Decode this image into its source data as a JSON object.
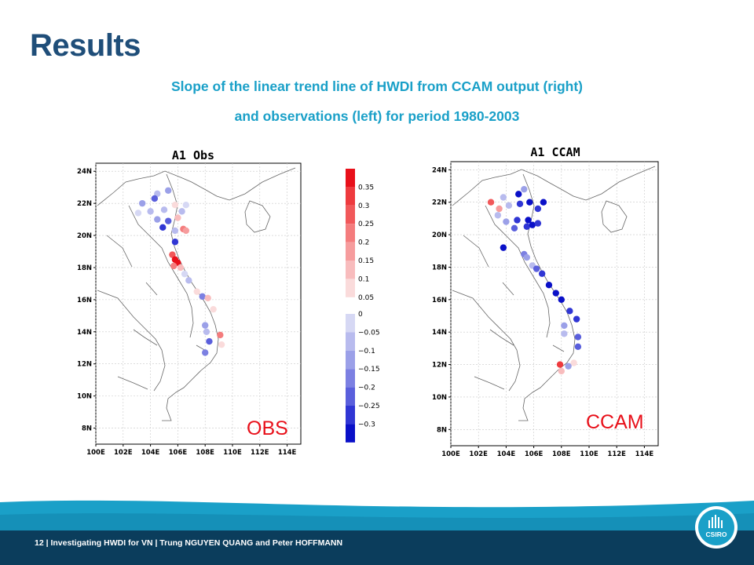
{
  "slide": {
    "title": "Results",
    "subtitle_line1": "Slope of the linear trend line of HWDI from CCAM output (right)",
    "subtitle_line2": "and observations (left) for period 1980-2003"
  },
  "maps": {
    "left": {
      "header": "A1 Obs",
      "tag": "OBS"
    },
    "right": {
      "header": "A1 CCAM",
      "tag": "CCAM"
    },
    "lat_labels": [
      "24N",
      "22N",
      "20N",
      "18N",
      "16N",
      "14N",
      "12N",
      "10N",
      "8N"
    ],
    "lon_labels": [
      "100E",
      "102E",
      "104E",
      "106E",
      "108E",
      "110E",
      "112E",
      "114E"
    ]
  },
  "legend": {
    "pos_labels": [
      "0.35",
      "0.3",
      "0.25",
      "0.2",
      "0.15",
      "0.1",
      "0.05"
    ],
    "neg_labels": [
      "0",
      "−0.05",
      "−0.1",
      "−0.15",
      "−0.2",
      "−0.25",
      "−0.3"
    ],
    "pos_colors": [
      "#e8101a",
      "#ee3a3e",
      "#f1585a",
      "#f47c7d",
      "#f69c9d",
      "#f8bcbd",
      "#fadbdb"
    ],
    "neg_colors": [
      "#d6d8f4",
      "#b8bbee",
      "#9ba0e8",
      "#7c80e2",
      "#5a5fdc",
      "#3036d4",
      "#0a10c8"
    ]
  },
  "chart_data": [
    {
      "type": "scatter",
      "title": "A1 Obs",
      "xlabel": "",
      "ylabel": "",
      "xlim": [
        100,
        115
      ],
      "ylim": [
        7,
        24.5
      ],
      "x_ticks": [
        "100E",
        "102E",
        "104E",
        "106E",
        "108E",
        "110E",
        "112E",
        "114E"
      ],
      "y_ticks": [
        "24N",
        "22N",
        "20N",
        "18N",
        "16N",
        "14N",
        "12N",
        "10N",
        "8N"
      ],
      "points": [
        {
          "lon": 104.5,
          "lat": 22.6,
          "v": -0.05
        },
        {
          "lon": 105.3,
          "lat": 22.8,
          "v": -0.1
        },
        {
          "lon": 104.3,
          "lat": 22.3,
          "v": -0.2
        },
        {
          "lon": 103.4,
          "lat": 22.0,
          "v": -0.1
        },
        {
          "lon": 103.1,
          "lat": 21.4,
          "v": 0.0
        },
        {
          "lon": 104.0,
          "lat": 21.5,
          "v": -0.05
        },
        {
          "lon": 105.0,
          "lat": 21.6,
          "v": -0.05
        },
        {
          "lon": 105.8,
          "lat": 21.9,
          "v": 0.05
        },
        {
          "lon": 106.6,
          "lat": 21.9,
          "v": 0.0
        },
        {
          "lon": 106.3,
          "lat": 21.5,
          "v": -0.05
        },
        {
          "lon": 104.5,
          "lat": 21.0,
          "v": -0.1
        },
        {
          "lon": 105.3,
          "lat": 20.9,
          "v": -0.2
        },
        {
          "lon": 106.0,
          "lat": 21.1,
          "v": 0.1
        },
        {
          "lon": 104.9,
          "lat": 20.5,
          "v": -0.25
        },
        {
          "lon": 105.8,
          "lat": 20.3,
          "v": -0.05
        },
        {
          "lon": 106.4,
          "lat": 20.4,
          "v": 0.2
        },
        {
          "lon": 106.6,
          "lat": 20.3,
          "v": 0.15
        },
        {
          "lon": 105.8,
          "lat": 19.6,
          "v": -0.25
        },
        {
          "lon": 105.6,
          "lat": 18.8,
          "v": 0.25
        },
        {
          "lon": 105.8,
          "lat": 18.5,
          "v": 0.35
        },
        {
          "lon": 106.0,
          "lat": 18.3,
          "v": 0.35
        },
        {
          "lon": 105.7,
          "lat": 18.1,
          "v": 0.2
        },
        {
          "lon": 106.2,
          "lat": 18.0,
          "v": 0.1
        },
        {
          "lon": 106.5,
          "lat": 17.6,
          "v": 0.0
        },
        {
          "lon": 106.8,
          "lat": 17.2,
          "v": -0.05
        },
        {
          "lon": 107.4,
          "lat": 16.5,
          "v": 0.05
        },
        {
          "lon": 107.8,
          "lat": 16.2,
          "v": -0.15
        },
        {
          "lon": 108.2,
          "lat": 16.1,
          "v": 0.1
        },
        {
          "lon": 108.6,
          "lat": 15.4,
          "v": 0.05
        },
        {
          "lon": 108.0,
          "lat": 14.4,
          "v": -0.1
        },
        {
          "lon": 108.1,
          "lat": 14.0,
          "v": -0.05
        },
        {
          "lon": 109.1,
          "lat": 13.8,
          "v": 0.2
        },
        {
          "lon": 108.3,
          "lat": 13.4,
          "v": -0.2
        },
        {
          "lon": 109.2,
          "lat": 13.2,
          "v": 0.05
        },
        {
          "lon": 108.0,
          "lat": 12.7,
          "v": -0.15
        }
      ]
    },
    {
      "type": "scatter",
      "title": "A1 CCAM",
      "xlabel": "",
      "ylabel": "",
      "xlim": [
        100,
        115
      ],
      "ylim": [
        7,
        24.5
      ],
      "x_ticks": [
        "100E",
        "102E",
        "104E",
        "106E",
        "108E",
        "110E",
        "112E",
        "114E"
      ],
      "y_ticks": [
        "24N",
        "22N",
        "20N",
        "18N",
        "16N",
        "14N",
        "12N",
        "10N",
        "8N"
      ],
      "points": [
        {
          "lon": 105.3,
          "lat": 22.8,
          "v": -0.1
        },
        {
          "lon": 104.9,
          "lat": 22.5,
          "v": -0.3
        },
        {
          "lon": 103.8,
          "lat": 22.3,
          "v": -0.05
        },
        {
          "lon": 102.9,
          "lat": 22.0,
          "v": 0.25
        },
        {
          "lon": 103.5,
          "lat": 21.6,
          "v": 0.15
        },
        {
          "lon": 104.2,
          "lat": 21.8,
          "v": -0.05
        },
        {
          "lon": 105.0,
          "lat": 21.9,
          "v": -0.25
        },
        {
          "lon": 105.7,
          "lat": 22.0,
          "v": -0.3
        },
        {
          "lon": 106.7,
          "lat": 22.0,
          "v": -0.3
        },
        {
          "lon": 106.3,
          "lat": 21.6,
          "v": -0.25
        },
        {
          "lon": 103.4,
          "lat": 21.2,
          "v": -0.05
        },
        {
          "lon": 104.0,
          "lat": 20.8,
          "v": -0.1
        },
        {
          "lon": 104.8,
          "lat": 20.9,
          "v": -0.25
        },
        {
          "lon": 105.6,
          "lat": 20.9,
          "v": -0.3
        },
        {
          "lon": 104.6,
          "lat": 20.4,
          "v": -0.2
        },
        {
          "lon": 105.5,
          "lat": 20.5,
          "v": -0.25
        },
        {
          "lon": 105.9,
          "lat": 20.6,
          "v": -0.3
        },
        {
          "lon": 106.3,
          "lat": 20.7,
          "v": -0.25
        },
        {
          "lon": 103.8,
          "lat": 19.2,
          "v": -0.3
        },
        {
          "lon": 105.3,
          "lat": 18.8,
          "v": -0.15
        },
        {
          "lon": 105.5,
          "lat": 18.6,
          "v": -0.1
        },
        {
          "lon": 105.9,
          "lat": 18.1,
          "v": -0.05
        },
        {
          "lon": 106.2,
          "lat": 17.9,
          "v": -0.2
        },
        {
          "lon": 106.6,
          "lat": 17.6,
          "v": -0.25
        },
        {
          "lon": 107.1,
          "lat": 16.9,
          "v": -0.3
        },
        {
          "lon": 107.6,
          "lat": 16.4,
          "v": -0.3
        },
        {
          "lon": 108.0,
          "lat": 16.0,
          "v": -0.3
        },
        {
          "lon": 108.6,
          "lat": 15.3,
          "v": -0.25
        },
        {
          "lon": 109.1,
          "lat": 14.8,
          "v": -0.25
        },
        {
          "lon": 108.2,
          "lat": 14.4,
          "v": -0.1
        },
        {
          "lon": 108.2,
          "lat": 13.9,
          "v": -0.05
        },
        {
          "lon": 109.2,
          "lat": 13.7,
          "v": -0.2
        },
        {
          "lon": 109.2,
          "lat": 13.1,
          "v": -0.2
        },
        {
          "lon": 108.9,
          "lat": 12.1,
          "v": 0.05
        },
        {
          "lon": 108.5,
          "lat": 11.9,
          "v": -0.1
        },
        {
          "lon": 107.9,
          "lat": 12.0,
          "v": 0.3
        },
        {
          "lon": 108.0,
          "lat": 11.6,
          "v": 0.1
        }
      ]
    }
  ],
  "footer": {
    "text": "12 | Investigating HWDI for VN | Trung NGUYEN QUANG and Peter HOFFMANN",
    "logo_text": "CSIRO"
  },
  "colors": {
    "title": "#1f4e79",
    "subtitle": "#1aa0c8",
    "tag": "#e8101a",
    "footer_dark": "#0b3d5c",
    "footer_band": "#1aa0c8"
  }
}
